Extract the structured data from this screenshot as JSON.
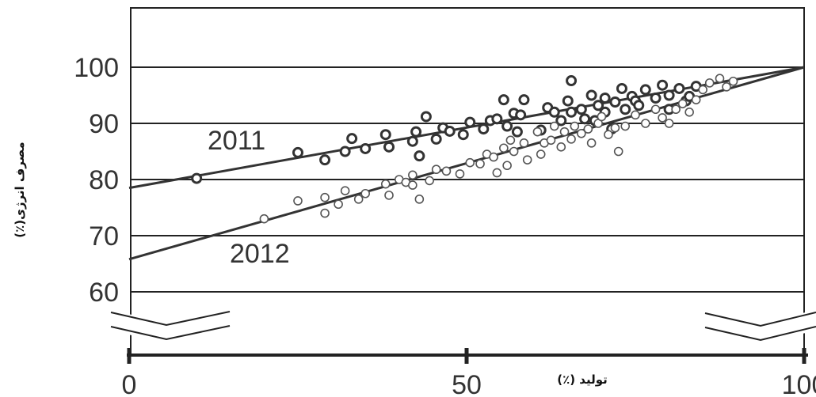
{
  "chart_data": {
    "type": "scatter",
    "title": "",
    "xlabel": "تولید (٪)",
    "ylabel": "مصرف انرژی(٪)",
    "xlim": [
      0,
      100
    ],
    "ylim": [
      50,
      110
    ],
    "x_ticks": [
      "0",
      "50",
      "100"
    ],
    "y_ticks": [
      "60",
      "70",
      "80",
      "90",
      "100"
    ],
    "grid": "horizontal",
    "axis_breaks": true,
    "colors": {
      "2011": "#333333",
      "2012": "#555555",
      "grid": "#222222"
    },
    "series": [
      {
        "name": "2011",
        "marker": "bold-open-circle",
        "trendline": {
          "from": [
            0,
            78.5
          ],
          "to": [
            100,
            100
          ]
        },
        "points": [
          [
            10,
            80.2
          ],
          [
            25,
            84.8
          ],
          [
            29,
            83.5
          ],
          [
            32,
            85
          ],
          [
            33,
            87.3
          ],
          [
            35,
            85.5
          ],
          [
            38,
            88
          ],
          [
            38.5,
            85.8
          ],
          [
            42,
            86.8
          ],
          [
            42.5,
            88.5
          ],
          [
            43,
            84.2
          ],
          [
            44,
            91.2
          ],
          [
            45.5,
            87.2
          ],
          [
            46.5,
            89.2
          ],
          [
            47.5,
            88.6
          ],
          [
            49.5,
            88
          ],
          [
            50.5,
            90.2
          ],
          [
            52.5,
            89
          ],
          [
            53.5,
            90.5
          ],
          [
            54.5,
            90.8
          ],
          [
            55.5,
            94.2
          ],
          [
            56,
            89.5
          ],
          [
            57,
            91.8
          ],
          [
            57.5,
            88.5
          ],
          [
            58.5,
            94.2
          ],
          [
            58,
            91.5
          ],
          [
            61,
            88.8
          ],
          [
            62,
            92.8
          ],
          [
            63,
            92
          ],
          [
            64,
            90.5
          ],
          [
            65,
            94
          ],
          [
            65.5,
            92
          ],
          [
            65.5,
            97.6
          ],
          [
            67,
            92.5
          ],
          [
            67.5,
            90.8
          ],
          [
            68.5,
            95
          ],
          [
            69,
            90.5
          ],
          [
            69.5,
            93.2
          ],
          [
            70.5,
            94.5
          ],
          [
            70.5,
            92
          ],
          [
            71.5,
            89
          ],
          [
            72,
            93.8
          ],
          [
            73,
            96.2
          ],
          [
            73.5,
            92.5
          ],
          [
            74.5,
            94.8
          ],
          [
            75,
            94
          ],
          [
            75.5,
            93.2
          ],
          [
            76.5,
            96
          ],
          [
            78,
            94.5
          ],
          [
            79,
            96.8
          ],
          [
            80,
            95
          ],
          [
            80,
            92.5
          ],
          [
            81.5,
            96.2
          ],
          [
            82.5,
            94
          ],
          [
            83,
            94.8
          ],
          [
            84,
            96.6
          ]
        ]
      },
      {
        "name": "2012",
        "marker": "open-circle",
        "trendline": {
          "from": [
            0,
            65.8
          ],
          "to": [
            100,
            100
          ]
        },
        "points": [
          [
            20,
            73
          ],
          [
            25,
            76.2
          ],
          [
            29,
            74
          ],
          [
            29,
            76.8
          ],
          [
            31,
            75.6
          ],
          [
            32,
            78
          ],
          [
            34,
            76.5
          ],
          [
            35,
            77.5
          ],
          [
            38,
            79.2
          ],
          [
            38.5,
            77.2
          ],
          [
            40,
            80
          ],
          [
            41,
            79.5
          ],
          [
            42,
            80.8
          ],
          [
            42,
            79
          ],
          [
            43,
            76.5
          ],
          [
            44.5,
            79.8
          ],
          [
            45.5,
            81.8
          ],
          [
            47,
            81.5
          ],
          [
            49,
            81
          ],
          [
            50.5,
            83
          ],
          [
            52,
            82.8
          ],
          [
            53,
            84.5
          ],
          [
            54,
            84
          ],
          [
            54.5,
            81.2
          ],
          [
            55.5,
            85.6
          ],
          [
            56,
            82.5
          ],
          [
            56.5,
            87
          ],
          [
            57,
            85
          ],
          [
            58.5,
            86.5
          ],
          [
            59,
            83.5
          ],
          [
            60.5,
            88.5
          ],
          [
            61,
            84.5
          ],
          [
            61.5,
            86.5
          ],
          [
            62.5,
            87
          ],
          [
            63,
            89.5
          ],
          [
            64,
            85.8
          ],
          [
            64.5,
            88.5
          ],
          [
            65.5,
            87.2
          ],
          [
            66,
            89.5
          ],
          [
            67,
            88.2
          ],
          [
            68,
            89
          ],
          [
            68.5,
            86.5
          ],
          [
            69.5,
            90
          ],
          [
            70,
            91.2
          ],
          [
            71,
            88
          ],
          [
            72,
            89.2
          ],
          [
            72.5,
            85
          ],
          [
            73.5,
            89.5
          ],
          [
            75,
            91.5
          ],
          [
            76.5,
            90
          ],
          [
            78,
            92.5
          ],
          [
            79,
            91
          ],
          [
            80,
            90
          ],
          [
            81,
            92.5
          ],
          [
            82,
            93.5
          ],
          [
            83,
            92
          ],
          [
            84,
            94.2
          ],
          [
            85,
            96
          ],
          [
            86,
            97.2
          ],
          [
            87.5,
            98
          ],
          [
            88.5,
            96.5
          ],
          [
            89.5,
            97.5
          ]
        ]
      }
    ]
  }
}
